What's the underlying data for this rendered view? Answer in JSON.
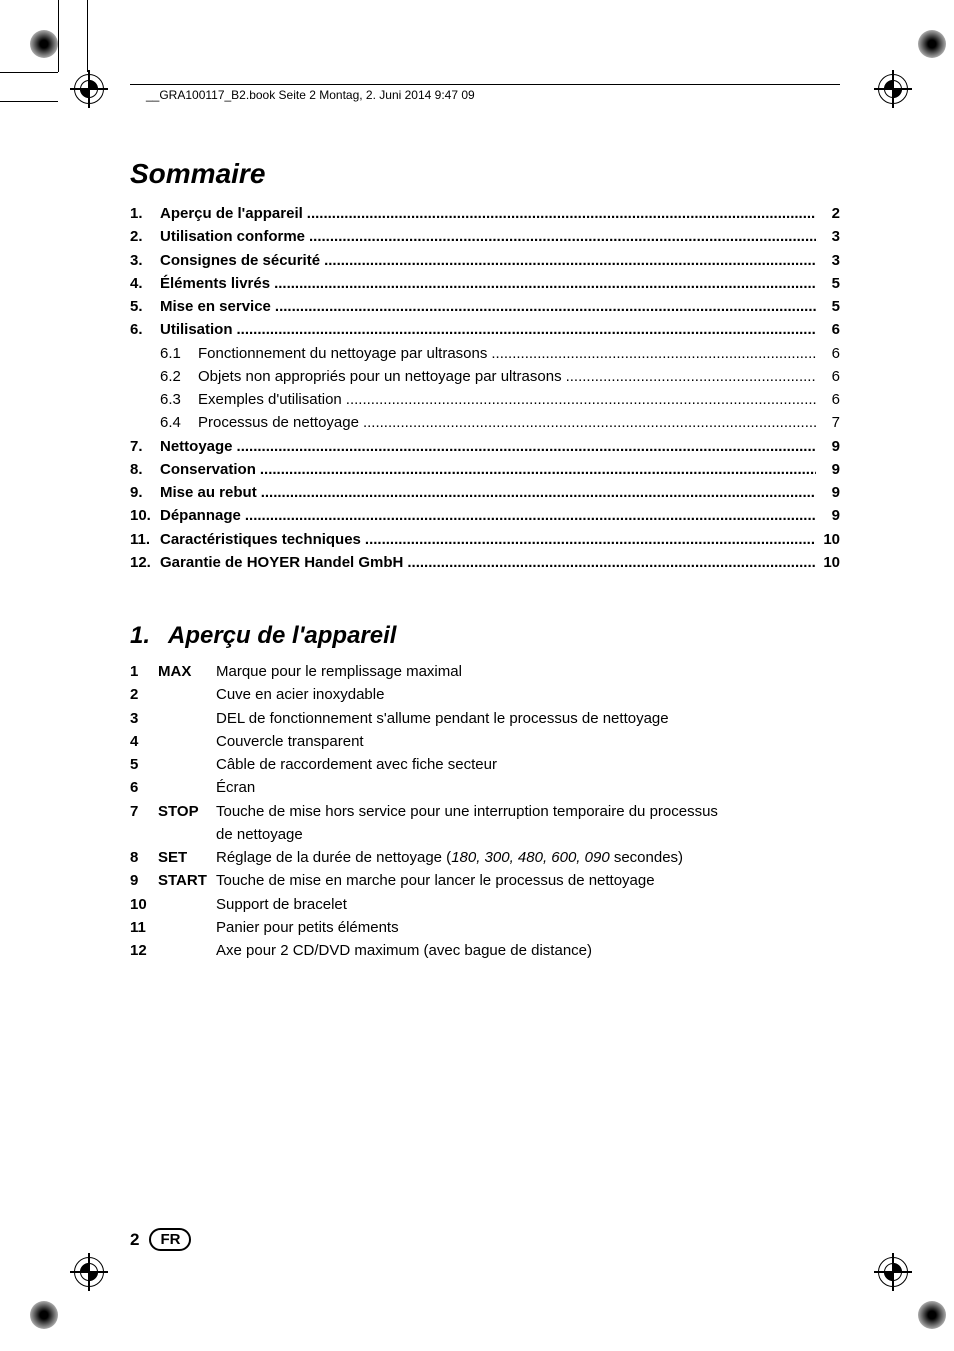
{
  "header": {
    "filename_line": "__GRA100117_B2.book  Seite 2  Montag, 2. Juni 2014  9:47 09"
  },
  "title": "Sommaire",
  "toc": [
    {
      "num": "1.",
      "label": "Aperçu de l'appareil",
      "page": "2",
      "bold": true
    },
    {
      "num": "2.",
      "label": "Utilisation conforme",
      "page": "3",
      "bold": true
    },
    {
      "num": "3.",
      "label": "Consignes de sécurité",
      "page": "3",
      "bold": true
    },
    {
      "num": "4.",
      "label": "Éléments livrés",
      "page": "5",
      "bold": true
    },
    {
      "num": "5.",
      "label": "Mise en service",
      "page": "5",
      "bold": true
    },
    {
      "num": "6.",
      "label": "Utilisation",
      "page": "6",
      "bold": true
    },
    {
      "num": "6.1",
      "label": "Fonctionnement du nettoyage par ultrasons",
      "page": "6",
      "bold": false,
      "sub": true
    },
    {
      "num": "6.2",
      "label": "Objets non appropriés pour un nettoyage par ultrasons",
      "page": "6",
      "bold": false,
      "sub": true
    },
    {
      "num": "6.3",
      "label": "Exemples d'utilisation",
      "page": "6",
      "bold": false,
      "sub": true
    },
    {
      "num": "6.4",
      "label": "Processus de nettoyage",
      "page": "7",
      "bold": false,
      "sub": true
    },
    {
      "num": "7.",
      "label": "Nettoyage",
      "page": "9",
      "bold": true
    },
    {
      "num": "8.",
      "label": "Conservation",
      "page": "9",
      "bold": true
    },
    {
      "num": "9.",
      "label": "Mise au rebut",
      "page": "9",
      "bold": true
    },
    {
      "num": "10.",
      "label": "Dépannage",
      "page": "9",
      "bold": true
    },
    {
      "num": "11.",
      "label": "Caractéristiques techniques",
      "page": "10",
      "bold": true
    },
    {
      "num": "12.",
      "label": "Garantie de HOYER Handel GmbH",
      "page": "10",
      "bold": true
    }
  ],
  "section1": {
    "num": "1.",
    "title": "Aperçu de l'appareil",
    "items": [
      {
        "n": "1",
        "key": "MAX",
        "text": "Marque pour le remplissage maximal"
      },
      {
        "n": "2",
        "key": "",
        "text": "Cuve en acier inoxydable"
      },
      {
        "n": "3",
        "key": "",
        "text": "DEL de fonctionnement s'allume pendant le processus de nettoyage"
      },
      {
        "n": "4",
        "key": "",
        "text": "Couvercle transparent"
      },
      {
        "n": "5",
        "key": "",
        "text": "Câble de raccordement avec fiche secteur"
      },
      {
        "n": "6",
        "key": "",
        "text": "Écran"
      },
      {
        "n": "7",
        "key": "STOP",
        "text": "Touche de mise hors service pour une interruption temporaire du processus de nettoyage",
        "wrap": true
      },
      {
        "n": "8",
        "key": "SET",
        "text_prefix": "Réglage de la durée de nettoyage (",
        "text_italic": "180, 300, 480, 600, 090",
        "text_suffix": " secondes)"
      },
      {
        "n": "9",
        "key": "START",
        "text": "Touche de mise en marche pour lancer le processus de nettoyage"
      },
      {
        "n": "10",
        "key": "",
        "text": "Support de bracelet"
      },
      {
        "n": "11",
        "key": "",
        "text": "Panier pour petits éléments"
      },
      {
        "n": "12",
        "key": "",
        "text": "Axe pour 2 CD/DVD maximum (avec bague de distance)"
      }
    ]
  },
  "footer": {
    "page": "2",
    "lang": "FR"
  },
  "dots_bold": " ..................................................................................................................................................",
  "dots": " ........................................................................................................................................................."
}
